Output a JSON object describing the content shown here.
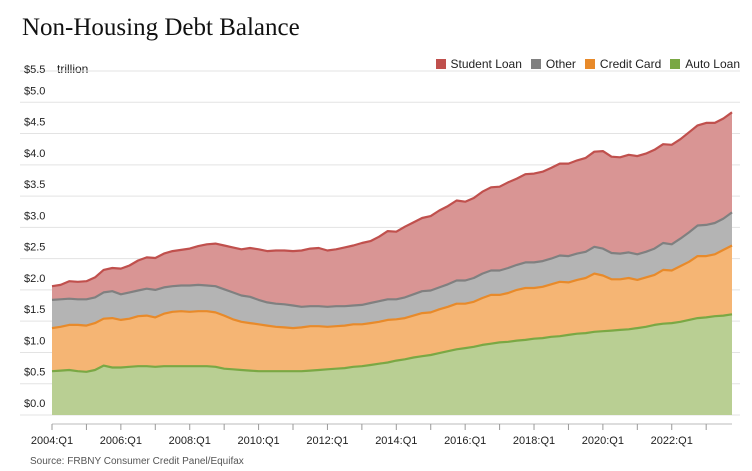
{
  "header": {
    "title": "Non-Housing Debt Balance",
    "unit_label": "trillion",
    "source": "Source: FRBNY Consumer Credit Panel/Equifax"
  },
  "colors": {
    "student_fill": "#d99594",
    "student_line": "#c0504d",
    "other_fill": "#b4b4b4",
    "other_line": "#808080",
    "credit_fill": "#f5b574",
    "credit_line": "#e88a2a",
    "auto_fill": "#b9cf93",
    "auto_line": "#7aa844"
  },
  "chart_data": {
    "type": "area",
    "stacked": true,
    "title": "Non-Housing Debt Balance",
    "ylabel": "trillion",
    "ylim": [
      0,
      5.5
    ],
    "yticks": [
      "$0.0",
      "$0.5",
      "$1.0",
      "$1.5",
      "$2.0",
      "$2.5",
      "$3.0",
      "$3.5",
      "$4.0",
      "$4.5",
      "$5.0",
      "$5.5"
    ],
    "x_range": [
      2004.0,
      2023.75
    ],
    "xticks": [
      {
        "label": "2004:Q1",
        "x": 2004.0
      },
      {
        "label": "2006:Q1",
        "x": 2006.0
      },
      {
        "label": "2008:Q1",
        "x": 2008.0
      },
      {
        "label": "2010:Q1",
        "x": 2010.0
      },
      {
        "label": "2012:Q1",
        "x": 2012.0
      },
      {
        "label": "2014:Q1",
        "x": 2014.0
      },
      {
        "label": "2016:Q1",
        "x": 2016.0
      },
      {
        "label": "2018:Q1",
        "x": 2018.0
      },
      {
        "label": "2020:Q1",
        "x": 2020.0
      },
      {
        "label": "2022:Q1",
        "x": 2022.0
      }
    ],
    "legend": [
      {
        "name": "Student Loan",
        "key": "student"
      },
      {
        "name": "Other",
        "key": "other"
      },
      {
        "name": "Credit Card",
        "key": "credit"
      },
      {
        "name": "Auto Loan",
        "key": "auto"
      }
    ],
    "legend_position": "top-right",
    "x": [
      2004.0,
      2004.25,
      2004.5,
      2004.75,
      2005.0,
      2005.25,
      2005.5,
      2005.75,
      2006.0,
      2006.25,
      2006.5,
      2006.75,
      2007.0,
      2007.25,
      2007.5,
      2007.75,
      2008.0,
      2008.25,
      2008.5,
      2008.75,
      2009.0,
      2009.25,
      2009.5,
      2009.75,
      2010.0,
      2010.25,
      2010.5,
      2010.75,
      2011.0,
      2011.25,
      2011.5,
      2011.75,
      2012.0,
      2012.25,
      2012.5,
      2012.75,
      2013.0,
      2013.25,
      2013.5,
      2013.75,
      2014.0,
      2014.25,
      2014.5,
      2014.75,
      2015.0,
      2015.25,
      2015.5,
      2015.75,
      2016.0,
      2016.25,
      2016.5,
      2016.75,
      2017.0,
      2017.25,
      2017.5,
      2017.75,
      2018.0,
      2018.25,
      2018.5,
      2018.75,
      2019.0,
      2019.25,
      2019.5,
      2019.75,
      2020.0,
      2020.25,
      2020.5,
      2020.75,
      2021.0,
      2021.25,
      2021.5,
      2021.75,
      2022.0,
      2022.25,
      2022.5,
      2022.75,
      2023.0,
      2023.25,
      2023.5,
      2023.75
    ],
    "series": [
      {
        "name": "Auto Loan",
        "key": "auto",
        "values": [
          0.7,
          0.71,
          0.72,
          0.7,
          0.69,
          0.72,
          0.79,
          0.76,
          0.76,
          0.77,
          0.78,
          0.78,
          0.77,
          0.78,
          0.78,
          0.78,
          0.78,
          0.78,
          0.78,
          0.77,
          0.74,
          0.73,
          0.72,
          0.71,
          0.7,
          0.7,
          0.7,
          0.7,
          0.7,
          0.7,
          0.71,
          0.72,
          0.73,
          0.74,
          0.75,
          0.77,
          0.78,
          0.8,
          0.82,
          0.84,
          0.87,
          0.89,
          0.92,
          0.94,
          0.96,
          0.99,
          1.02,
          1.05,
          1.07,
          1.09,
          1.12,
          1.14,
          1.16,
          1.17,
          1.19,
          1.2,
          1.22,
          1.23,
          1.25,
          1.26,
          1.28,
          1.3,
          1.31,
          1.33,
          1.34,
          1.35,
          1.36,
          1.37,
          1.39,
          1.41,
          1.44,
          1.46,
          1.47,
          1.49,
          1.52,
          1.55,
          1.56,
          1.58,
          1.59,
          1.61
        ]
      },
      {
        "name": "Credit Card",
        "key": "credit",
        "values": [
          0.69,
          0.7,
          0.72,
          0.74,
          0.74,
          0.75,
          0.75,
          0.79,
          0.76,
          0.77,
          0.8,
          0.81,
          0.79,
          0.84,
          0.87,
          0.88,
          0.87,
          0.88,
          0.88,
          0.87,
          0.85,
          0.8,
          0.77,
          0.76,
          0.75,
          0.73,
          0.71,
          0.7,
          0.69,
          0.7,
          0.71,
          0.7,
          0.68,
          0.68,
          0.68,
          0.68,
          0.67,
          0.67,
          0.67,
          0.68,
          0.66,
          0.66,
          0.67,
          0.69,
          0.68,
          0.7,
          0.71,
          0.73,
          0.71,
          0.72,
          0.75,
          0.78,
          0.76,
          0.78,
          0.81,
          0.83,
          0.81,
          0.82,
          0.84,
          0.87,
          0.84,
          0.86,
          0.88,
          0.93,
          0.89,
          0.82,
          0.81,
          0.82,
          0.77,
          0.79,
          0.8,
          0.86,
          0.84,
          0.89,
          0.93,
          0.99,
          0.98,
          0.99,
          1.05,
          1.1
        ]
      },
      {
        "name": "Other",
        "key": "other",
        "values": [
          0.45,
          0.44,
          0.42,
          0.41,
          0.42,
          0.41,
          0.42,
          0.43,
          0.41,
          0.42,
          0.41,
          0.43,
          0.44,
          0.42,
          0.41,
          0.41,
          0.42,
          0.42,
          0.41,
          0.42,
          0.42,
          0.43,
          0.42,
          0.42,
          0.39,
          0.37,
          0.37,
          0.37,
          0.36,
          0.33,
          0.32,
          0.32,
          0.32,
          0.32,
          0.31,
          0.3,
          0.31,
          0.32,
          0.33,
          0.33,
          0.32,
          0.33,
          0.34,
          0.35,
          0.35,
          0.35,
          0.36,
          0.37,
          0.37,
          0.38,
          0.39,
          0.39,
          0.39,
          0.4,
          0.4,
          0.41,
          0.41,
          0.41,
          0.41,
          0.42,
          0.42,
          0.42,
          0.42,
          0.43,
          0.43,
          0.42,
          0.41,
          0.41,
          0.41,
          0.41,
          0.42,
          0.43,
          0.42,
          0.44,
          0.47,
          0.49,
          0.5,
          0.5,
          0.5,
          0.53
        ]
      },
      {
        "name": "Student Loan",
        "key": "student",
        "values": [
          0.22,
          0.23,
          0.28,
          0.28,
          0.29,
          0.32,
          0.36,
          0.37,
          0.41,
          0.43,
          0.48,
          0.5,
          0.51,
          0.54,
          0.56,
          0.57,
          0.59,
          0.62,
          0.66,
          0.68,
          0.7,
          0.72,
          0.74,
          0.78,
          0.81,
          0.82,
          0.85,
          0.86,
          0.87,
          0.9,
          0.92,
          0.93,
          0.9,
          0.91,
          0.94,
          0.96,
          0.99,
          0.99,
          1.03,
          1.09,
          1.08,
          1.13,
          1.15,
          1.17,
          1.19,
          1.23,
          1.25,
          1.28,
          1.26,
          1.28,
          1.31,
          1.33,
          1.34,
          1.37,
          1.38,
          1.41,
          1.42,
          1.43,
          1.45,
          1.47,
          1.48,
          1.49,
          1.5,
          1.52,
          1.56,
          1.54,
          1.54,
          1.56,
          1.57,
          1.57,
          1.58,
          1.58,
          1.59,
          1.59,
          1.6,
          1.6,
          1.63,
          1.6,
          1.6,
          1.6
        ]
      }
    ]
  }
}
